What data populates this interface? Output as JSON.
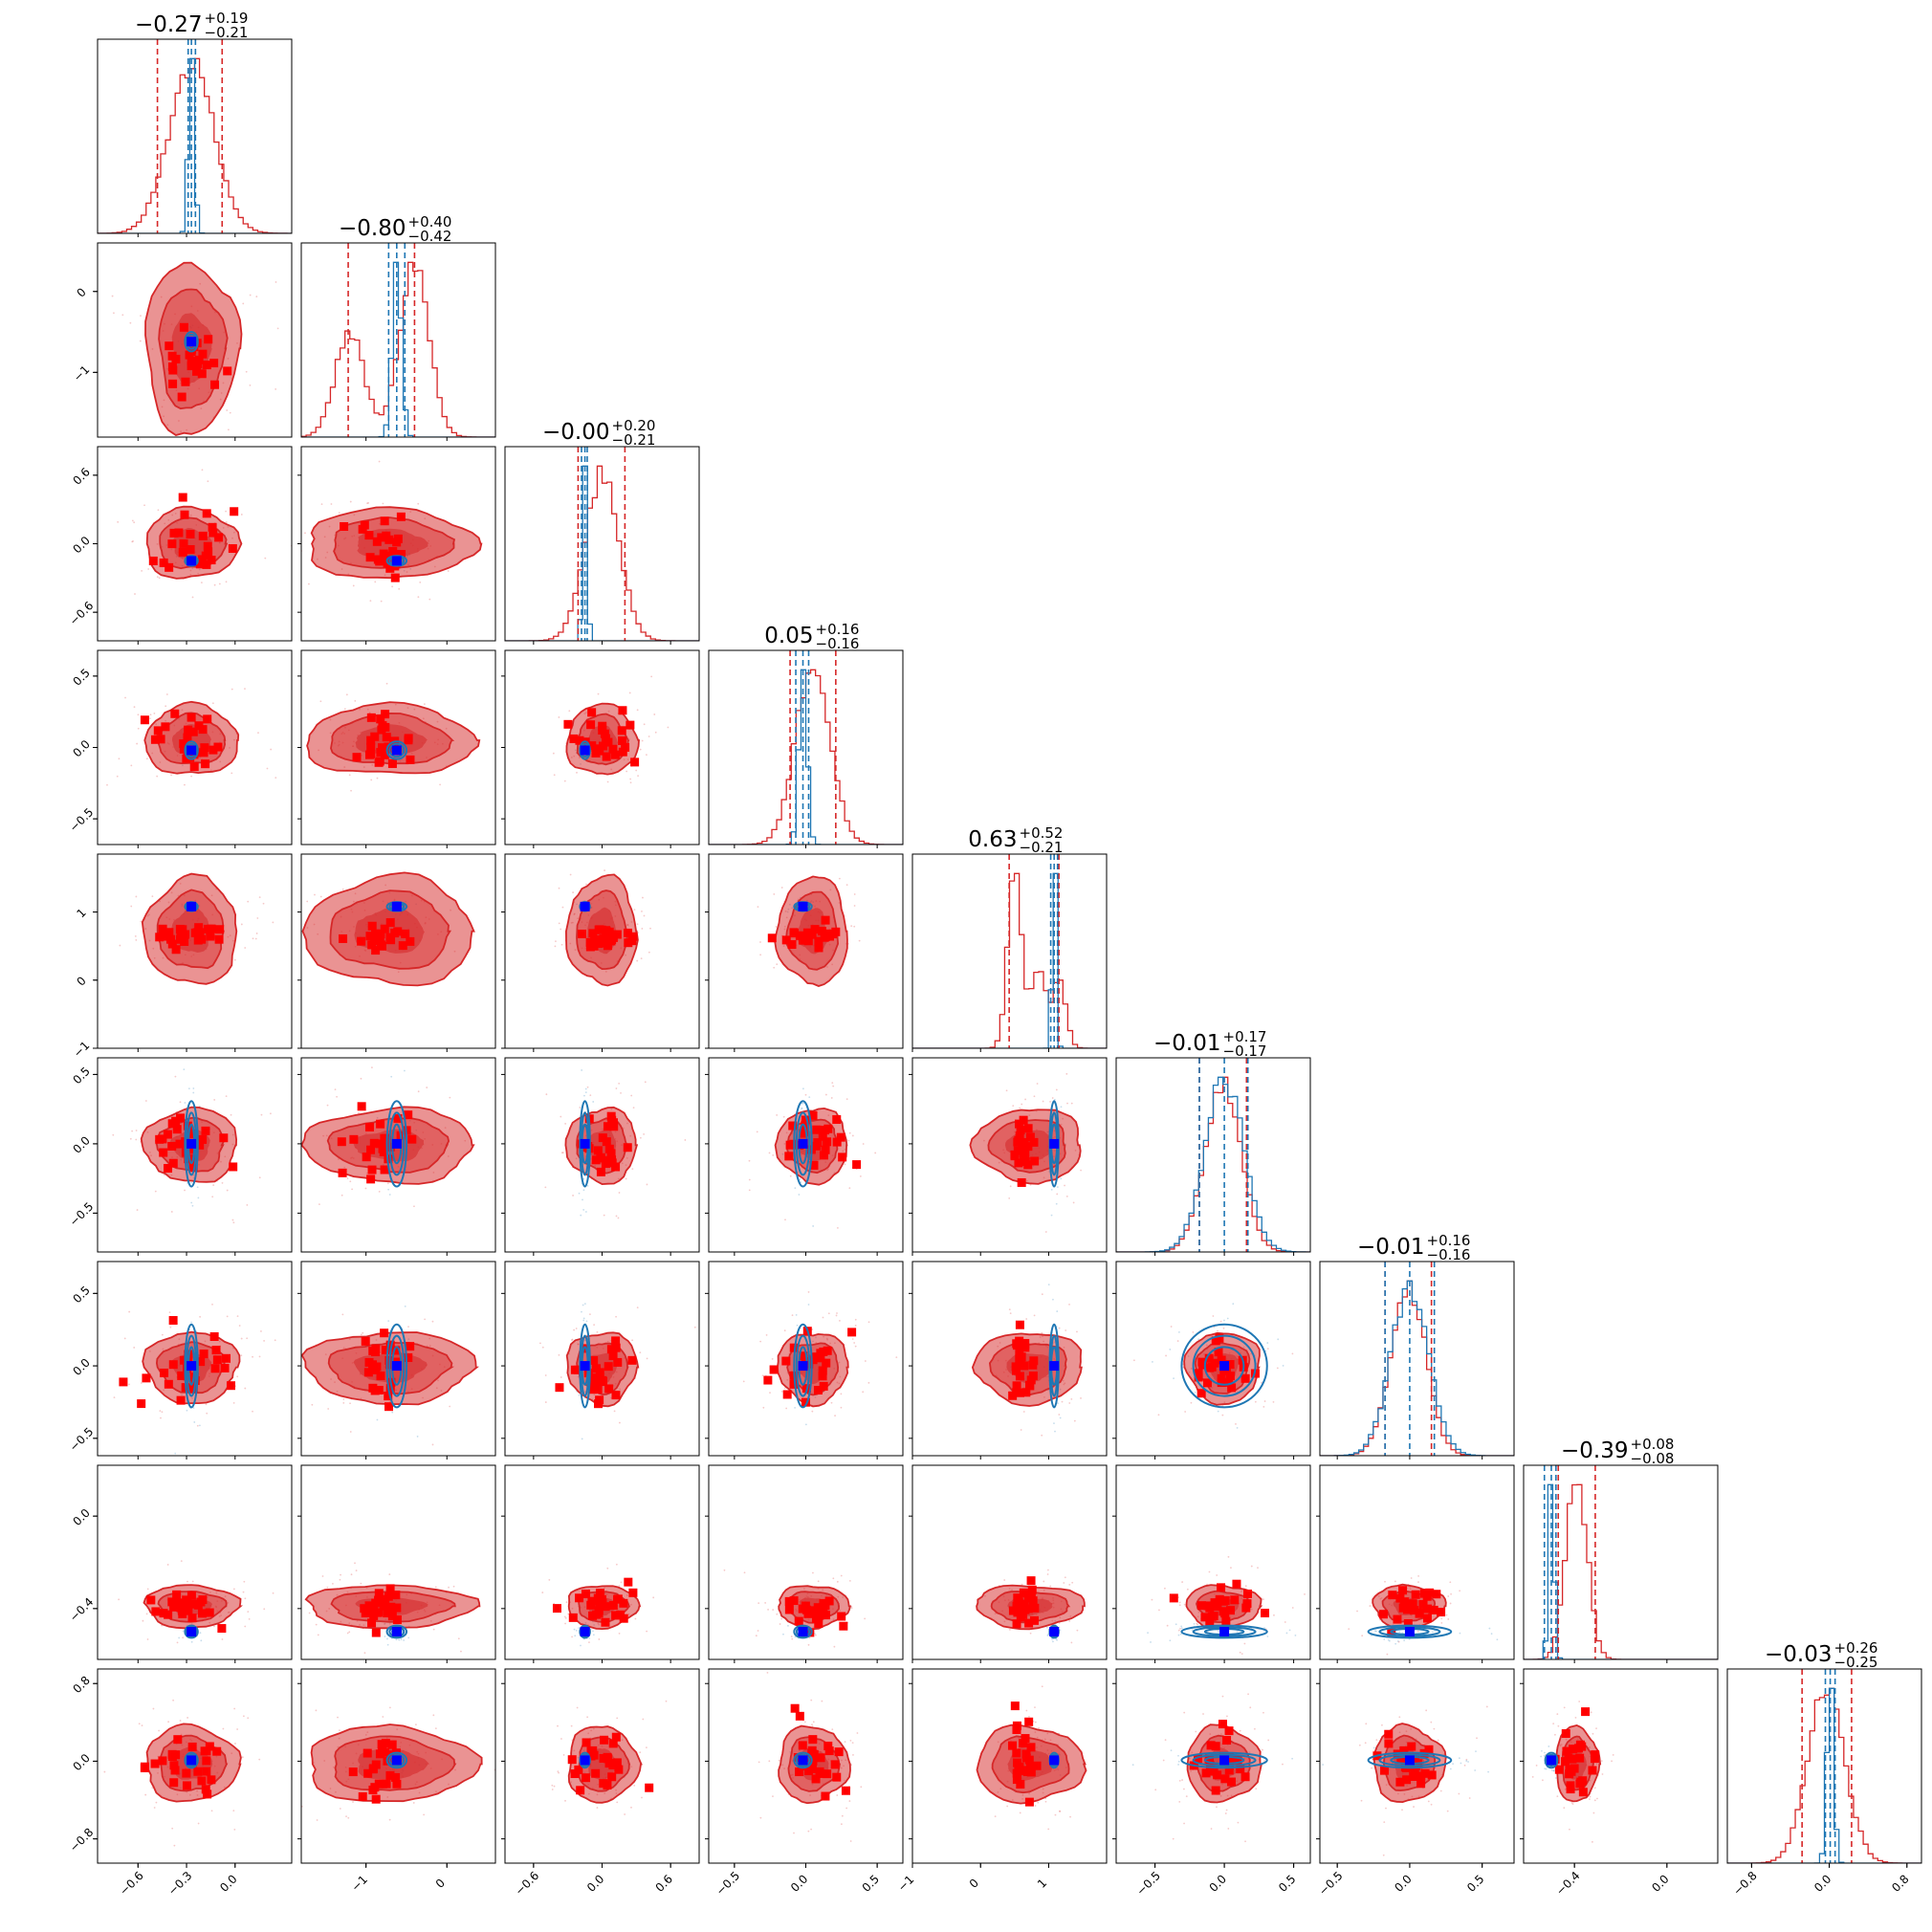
{
  "chart_data": {
    "type": "corner",
    "n_params": 9,
    "colors": {
      "posterior_red": "#d62728",
      "posterior_blue": "#1f77b4",
      "injection_marker": "#0000ff",
      "sample_marker": "#ff0000"
    },
    "series": [
      {
        "key": "red",
        "description_color": "#d62728"
      },
      {
        "key": "blue",
        "description_color": "#1f77b4"
      }
    ],
    "params": [
      {
        "range": [
          -0.85,
          0.35
        ],
        "ticks": [
          -0.6,
          -0.3,
          0.0
        ],
        "tick_labels": [
          "−0.6",
          "−0.3",
          "0.0"
        ],
        "red": {
          "median": -0.27,
          "plus": 0.19,
          "minus": 0.21,
          "sd": 0.14,
          "weights": [
            1
          ]
        },
        "blue": {
          "median": -0.27,
          "sd": 0.018,
          "q": [
            -0.29,
            -0.27,
            -0.245
          ]
        },
        "title": {
          "value": "−0.27",
          "plus": "+0.19",
          "minus": "−0.21"
        }
      },
      {
        "range": [
          -1.8,
          0.6
        ],
        "ticks": [
          -1,
          0
        ],
        "tick_labels": [
          "−1",
          "0"
        ],
        "red": {
          "median": -0.8,
          "plus": 0.4,
          "minus": 0.42,
          "sd": 0.18,
          "centers": [
            -1.2,
            -0.4
          ],
          "weights": [
            0.38,
            0.62
          ]
        },
        "blue": {
          "median": -0.62,
          "sd": 0.055,
          "q": [
            -0.72,
            -0.62,
            -0.52
          ]
        },
        "title": {
          "value": "−0.80",
          "plus": "+0.40",
          "minus": "−0.42"
        }
      },
      {
        "range": [
          -0.85,
          0.85
        ],
        "ticks": [
          -0.6,
          0.0,
          0.6
        ],
        "tick_labels": [
          "−0.6",
          "0.0",
          "0.6"
        ],
        "red": {
          "median": -0.0,
          "plus": 0.2,
          "minus": 0.21,
          "sd": 0.15,
          "weights": [
            1
          ]
        },
        "blue": {
          "median": -0.15,
          "sd": 0.02,
          "q": [
            -0.18,
            -0.15,
            -0.13
          ]
        },
        "title": {
          "value": "−0.00",
          "plus": "+0.20",
          "minus": "−0.21"
        }
      },
      {
        "range": [
          -0.68,
          0.68
        ],
        "ticks": [
          -0.5,
          0.0,
          0.5
        ],
        "tick_labels": [
          "−0.5",
          "0.0",
          "0.5"
        ],
        "red": {
          "median": 0.05,
          "plus": 0.16,
          "minus": 0.16,
          "sd": 0.12,
          "weights": [
            1
          ]
        },
        "blue": {
          "median": -0.02,
          "sd": 0.028,
          "q": [
            -0.07,
            -0.02,
            0.02
          ]
        },
        "title": {
          "value": "0.05",
          "plus": "+0.16",
          "minus": "−0.16"
        }
      },
      {
        "range": [
          -1.0,
          1.85
        ],
        "ticks": [
          -1,
          0,
          1
        ],
        "tick_labels": [
          "−1",
          "0",
          "1"
        ],
        "red": {
          "median": 0.63,
          "plus": 0.52,
          "minus": 0.21,
          "sd": 0.1,
          "centers": [
            0.5,
            0.85,
            1.15
          ],
          "weights": [
            0.55,
            0.25,
            0.2
          ]
        },
        "blue": {
          "median": 1.08,
          "sd": 0.03,
          "q": [
            1.03,
            1.08,
            1.13
          ]
        },
        "title": {
          "value": "0.63",
          "plus": "+0.52",
          "minus": "−0.21"
        }
      },
      {
        "range": [
          -0.78,
          0.62
        ],
        "ticks": [
          -0.5,
          0.0,
          0.5
        ],
        "tick_labels": [
          "−0.5",
          "0.0",
          "0.5"
        ],
        "red": {
          "median": -0.01,
          "plus": 0.17,
          "minus": 0.17,
          "sd": 0.13,
          "weights": [
            1
          ]
        },
        "blue": {
          "median": 0.0,
          "sd": 0.14,
          "q": [
            -0.18,
            0.0,
            0.17
          ]
        },
        "title": {
          "value": "−0.01",
          "plus": "+0.17",
          "minus": "−0.17"
        }
      },
      {
        "range": [
          -0.62,
          0.72
        ],
        "ticks": [
          -0.5,
          0.0,
          0.5
        ],
        "tick_labels": [
          "−0.5",
          "0.0",
          "0.5"
        ],
        "red": {
          "median": -0.01,
          "plus": 0.16,
          "minus": 0.16,
          "sd": 0.12,
          "weights": [
            1
          ]
        },
        "blue": {
          "median": 0.0,
          "sd": 0.13,
          "q": [
            -0.17,
            0.0,
            0.17
          ]
        },
        "title": {
          "value": "−0.01",
          "plus": "+0.16",
          "minus": "−0.16"
        }
      },
      {
        "range": [
          -0.62,
          0.22
        ],
        "ticks": [
          -0.4,
          0.0
        ],
        "tick_labels": [
          "−0.4",
          "0.0"
        ],
        "red": {
          "median": -0.39,
          "plus": 0.08,
          "minus": 0.08,
          "sd": 0.045,
          "weights": [
            1
          ]
        },
        "blue": {
          "median": -0.5,
          "sd": 0.012,
          "q": [
            -0.53,
            -0.5,
            -0.48
          ]
        },
        "title": {
          "value": "−0.39",
          "plus": "+0.08",
          "minus": "−0.08"
        }
      },
      {
        "range": [
          -1.05,
          0.95
        ],
        "ticks": [
          -0.8,
          0.0,
          0.8
        ],
        "tick_labels": [
          "−0.8",
          "0.0",
          "0.8"
        ],
        "red": {
          "median": -0.03,
          "plus": 0.26,
          "minus": 0.25,
          "sd": 0.19,
          "weights": [
            1
          ]
        },
        "blue": {
          "median": 0.01,
          "sd": 0.035,
          "q": [
            -0.04,
            0.01,
            0.06
          ]
        },
        "title": {
          "value": "−0.03",
          "plus": "+0.26",
          "minus": "−0.25"
        }
      }
    ]
  }
}
